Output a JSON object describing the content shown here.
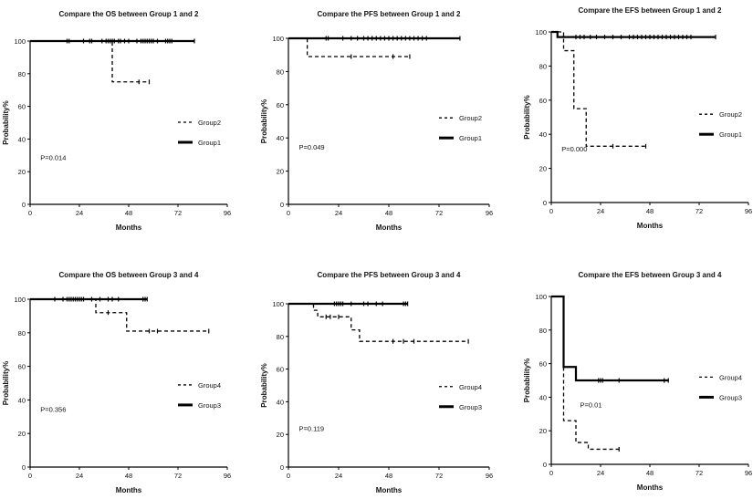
{
  "chart_data": [
    {
      "type": "line",
      "title": "Compare the OS between Group 1 and 2",
      "xlabel": "Months",
      "ylabel": "Probability%",
      "xlim": [
        0,
        96
      ],
      "ylim": [
        0,
        100
      ],
      "xticks": [
        "0",
        "24",
        "48",
        "72",
        "96"
      ],
      "yticks": [
        "0",
        "20",
        "40",
        "60",
        "80",
        "100"
      ],
      "pvalue": "P=0.014",
      "series": [
        {
          "name": "Group1",
          "style": "solid",
          "steps": [
            [
              0,
              100
            ],
            [
              80,
              100
            ]
          ],
          "censors": [
            18,
            19,
            26,
            29,
            30,
            35,
            37,
            38,
            39,
            40,
            41,
            43,
            44,
            46,
            48,
            52,
            54,
            55,
            56,
            57,
            58,
            59,
            60,
            62,
            66,
            67,
            68,
            69,
            80
          ]
        },
        {
          "name": "Group2",
          "style": "dashed",
          "steps": [
            [
              0,
              100
            ],
            [
              40,
              100
            ],
            [
              40,
              75
            ],
            [
              58,
              75
            ]
          ],
          "censors": [
            53,
            58
          ]
        }
      ]
    },
    {
      "type": "line",
      "title": "Compare the PFS  between Group 1 and 2",
      "xlabel": "Months",
      "ylabel": "Probability%",
      "xlim": [
        0,
        96
      ],
      "ylim": [
        0,
        100
      ],
      "xticks": [
        "0",
        "24",
        "48",
        "72",
        "96"
      ],
      "yticks": [
        "0",
        "20",
        "40",
        "60",
        "80",
        "100"
      ],
      "pvalue": "P=0.049",
      "series": [
        {
          "name": "Group1",
          "style": "solid",
          "steps": [
            [
              0,
              100
            ],
            [
              82,
              100
            ]
          ],
          "censors": [
            18,
            19,
            26,
            30,
            33,
            36,
            38,
            40,
            42,
            44,
            46,
            48,
            50,
            52,
            54,
            56,
            58,
            60,
            62,
            64,
            66,
            82
          ]
        },
        {
          "name": "Group2",
          "style": "dashed",
          "steps": [
            [
              0,
              100
            ],
            [
              9,
              100
            ],
            [
              9,
              89
            ],
            [
              58,
              89
            ]
          ],
          "censors": [
            30,
            50,
            58
          ]
        }
      ]
    },
    {
      "type": "line",
      "title": "Compare the EFS  between Group 1 and 2",
      "xlabel": "Months",
      "ylabel": "Probability%",
      "xlim": [
        0,
        96
      ],
      "ylim": [
        0,
        100
      ],
      "xticks": [
        "0",
        "24",
        "48",
        "72",
        "96"
      ],
      "yticks": [
        "0",
        "20",
        "40",
        "60",
        "80",
        "100"
      ],
      "pvalue": "P=0.000",
      "series": [
        {
          "name": "Group1",
          "style": "solid",
          "steps": [
            [
              0,
              100
            ],
            [
              3,
              100
            ],
            [
              3,
              97
            ],
            [
              80,
              97
            ]
          ],
          "censors": [
            12,
            14,
            16,
            19,
            22,
            26,
            30,
            34,
            38,
            40,
            42,
            44,
            46,
            48,
            50,
            52,
            54,
            56,
            58,
            60,
            62,
            64,
            66,
            68,
            80
          ]
        },
        {
          "name": "Group2",
          "style": "dashed",
          "steps": [
            [
              0,
              100
            ],
            [
              6,
              100
            ],
            [
              6,
              89
            ],
            [
              11,
              89
            ],
            [
              11,
              55
            ],
            [
              17,
              55
            ],
            [
              17,
              33
            ],
            [
              46,
              33
            ]
          ],
          "censors": [
            30,
            46
          ]
        }
      ]
    },
    {
      "type": "line",
      "title": "Compare the OS  between Group 3 and 4",
      "xlabel": "Months",
      "ylabel": "Probability%",
      "xlim": [
        0,
        96
      ],
      "ylim": [
        0,
        100
      ],
      "xticks": [
        "0",
        "24",
        "48",
        "72",
        "96"
      ],
      "yticks": [
        "0",
        "20",
        "40",
        "60",
        "80",
        "100"
      ],
      "pvalue": "P=0.356",
      "series": [
        {
          "name": "Group3",
          "style": "solid",
          "steps": [
            [
              0,
              100
            ],
            [
              57,
              100
            ]
          ],
          "censors": [
            12,
            16,
            18,
            19,
            20,
            21,
            22,
            23,
            24,
            25,
            26,
            30,
            34,
            38,
            40,
            43,
            55,
            56,
            57
          ]
        },
        {
          "name": "Group4",
          "style": "dashed",
          "steps": [
            [
              0,
              100
            ],
            [
              32,
              100
            ],
            [
              32,
              92
            ],
            [
              47,
              92
            ],
            [
              47,
              81
            ],
            [
              87,
              81
            ]
          ],
          "censors": [
            38,
            58,
            62,
            87
          ]
        }
      ]
    },
    {
      "type": "line",
      "title": "Compare the PFS  between Group 3 and 4",
      "xlabel": "Months",
      "ylabel": "Probability%",
      "xlim": [
        0,
        96
      ],
      "ylim": [
        0,
        100
      ],
      "xticks": [
        "0",
        "24",
        "48",
        "72",
        "96"
      ],
      "yticks": [
        "0",
        "20",
        "40",
        "60",
        "80",
        "100"
      ],
      "pvalue": "P=0.119",
      "series": [
        {
          "name": "Group3",
          "style": "solid",
          "steps": [
            [
              0,
              100
            ],
            [
              57,
              100
            ]
          ],
          "censors": [
            22,
            23,
            24,
            25,
            26,
            30,
            36,
            38,
            42,
            45,
            55,
            56,
            57
          ]
        },
        {
          "name": "Group4",
          "style": "dashed",
          "steps": [
            [
              0,
              100
            ],
            [
              12,
              100
            ],
            [
              12,
              96
            ],
            [
              14,
              96
            ],
            [
              14,
              92
            ],
            [
              30,
              92
            ],
            [
              30,
              84
            ],
            [
              34,
              84
            ],
            [
              34,
              77
            ],
            [
              86,
              77
            ]
          ],
          "censors": [
            18,
            20,
            24,
            50,
            55,
            60,
            86
          ]
        }
      ]
    },
    {
      "type": "line",
      "title": "Compare the EFS  between Group 3 and 4",
      "xlabel": "Months",
      "ylabel": "Probability%",
      "xlim": [
        0,
        96
      ],
      "ylim": [
        0,
        100
      ],
      "xticks": [
        "0",
        "24",
        "48",
        "72",
        "96"
      ],
      "yticks": [
        "0",
        "20",
        "40",
        "60",
        "80",
        "100"
      ],
      "pvalue": "P=0.01",
      "series": [
        {
          "name": "Group3",
          "style": "solid",
          "steps": [
            [
              0,
              100
            ],
            [
              6,
              100
            ],
            [
              6,
              58
            ],
            [
              12,
              58
            ],
            [
              12,
              50
            ],
            [
              57,
              50
            ]
          ],
          "censors": [
            23,
            24,
            25,
            33,
            55,
            57
          ]
        },
        {
          "name": "Group4",
          "style": "dashed",
          "steps": [
            [
              0,
              100
            ],
            [
              6,
              100
            ],
            [
              6,
              26
            ],
            [
              12,
              26
            ],
            [
              12,
              13
            ],
            [
              18,
              13
            ],
            [
              18,
              9
            ],
            [
              33,
              9
            ]
          ],
          "censors": [
            33
          ]
        }
      ]
    }
  ]
}
